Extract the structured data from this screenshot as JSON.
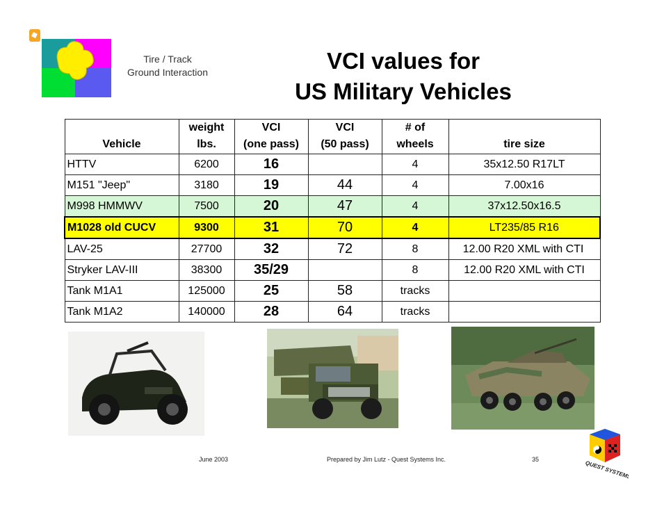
{
  "header": {
    "subtitle_line1": "Tire / Track",
    "subtitle_line2": "Ground Interaction",
    "title_line1": "VCI values for",
    "title_line2": "US Military Vehicles"
  },
  "table": {
    "headers": [
      {
        "line1": "",
        "line2": "Vehicle"
      },
      {
        "line1": "weight",
        "line2": "lbs."
      },
      {
        "line1": "VCI",
        "line2": "(one pass)"
      },
      {
        "line1": "VCI",
        "line2": "(50 pass)"
      },
      {
        "line1": "# of",
        "line2": "wheels"
      },
      {
        "line1": "",
        "line2": "tire size"
      }
    ],
    "rows": [
      {
        "vehicle": "HTTV",
        "weight": "6200",
        "vci1": "16",
        "vci50": "",
        "wheels": "4",
        "tire": "35x12.50 R17LT"
      },
      {
        "vehicle": "M151 \"Jeep\"",
        "weight": "3180",
        "vci1": "19",
        "vci50": "44",
        "wheels": "4",
        "tire": "7.00x16"
      },
      {
        "vehicle": "M998 HMMWV",
        "weight": "7500",
        "vci1": "20",
        "vci50": "47",
        "wheels": "4",
        "tire": "37x12.50x16.5"
      },
      {
        "vehicle": "M1028 old CUCV",
        "weight": "9300",
        "vci1": "31",
        "vci50": "70",
        "wheels": "4",
        "tire": "LT235/85 R16"
      },
      {
        "vehicle": "LAV-25",
        "weight": "27700",
        "vci1": "32",
        "vci50": "72",
        "wheels": "8",
        "tire": "12.00 R20 XML with CTI"
      },
      {
        "vehicle": "Stryker LAV-III",
        "weight": "38300",
        "vci1": "35/29",
        "vci50": "",
        "wheels": "8",
        "tire": "12.00 R20 XML with CTI"
      },
      {
        "vehicle": "Tank M1A1",
        "weight": "125000",
        "vci1": "25",
        "vci50": "58",
        "wheels": "tracks",
        "tire": ""
      },
      {
        "vehicle": "Tank M1A2",
        "weight": "140000",
        "vci1": "28",
        "vci50": "64",
        "wheels": "tracks",
        "tire": ""
      }
    ]
  },
  "footer": {
    "date": "June 2003",
    "credit": "Prepared by Jim Lutz - Quest Systems Inc.",
    "page": "35",
    "logo_text": "QUEST SYSTEMS"
  },
  "colors": {
    "highlight_green": "#d6f7d6",
    "highlight_yellow": "#ffff00"
  },
  "icons": [
    "puzzle-logo-icon",
    "quest-systems-logo-icon"
  ]
}
